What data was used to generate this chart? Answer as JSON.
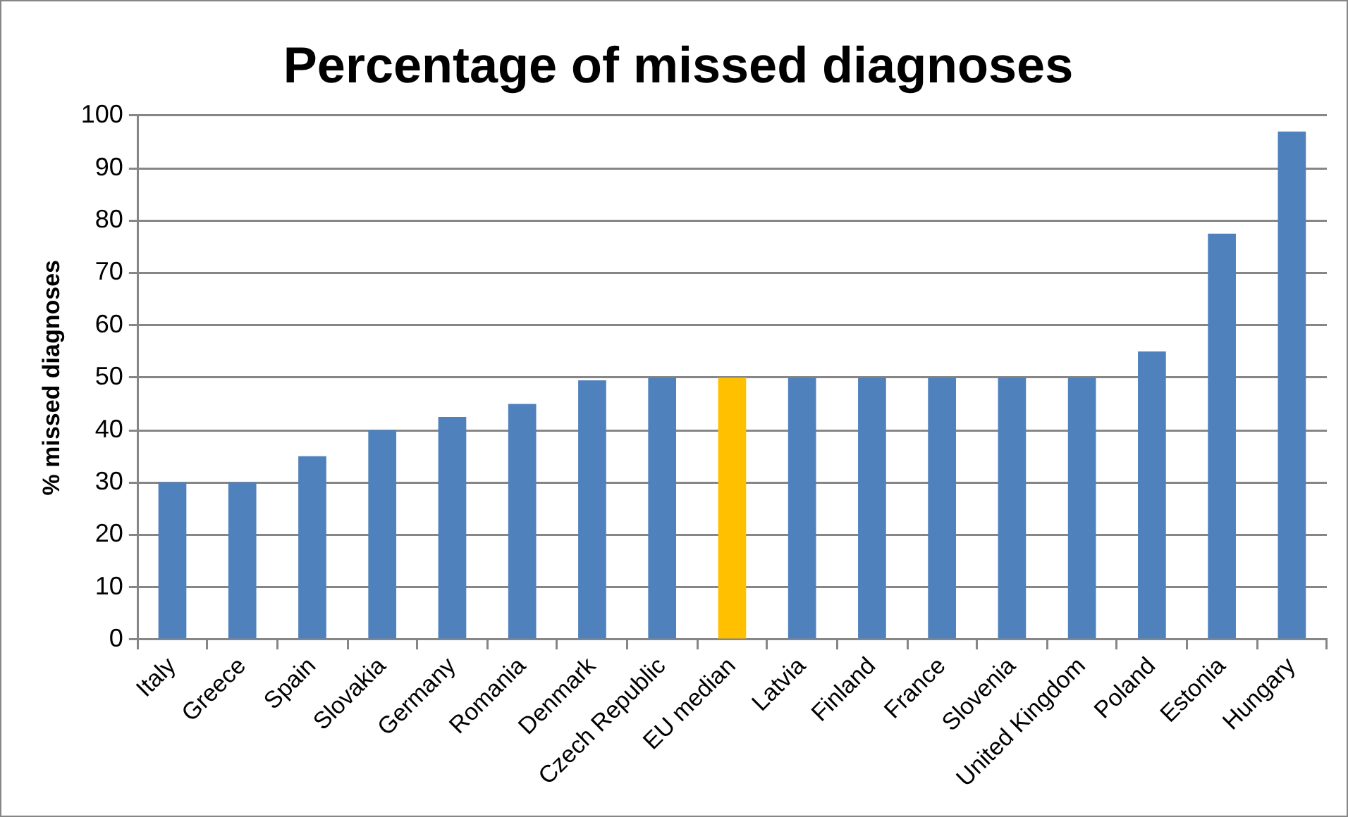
{
  "chart_data": {
    "type": "bar",
    "title": "Percentage of missed diagnoses",
    "ylabel": "% missed diagnoses",
    "categories": [
      "Italy",
      "Greece",
      "Spain",
      "Slovakia",
      "Germany",
      "Romania",
      "Denmark",
      "Czech Republic",
      "EU median",
      "Latvia",
      "Finland",
      "France",
      "Slovenia",
      "United Kingdom",
      "Poland",
      "Estonia",
      "Hungary"
    ],
    "values": [
      30,
      30,
      35,
      40,
      42.5,
      45,
      49.5,
      50,
      50,
      50,
      50,
      50,
      50,
      50,
      55,
      77.5,
      97
    ],
    "colors": [
      "#4f81bd",
      "#4f81bd",
      "#4f81bd",
      "#4f81bd",
      "#4f81bd",
      "#4f81bd",
      "#4f81bd",
      "#4f81bd",
      "#ffc000",
      "#4f81bd",
      "#4f81bd",
      "#4f81bd",
      "#4f81bd",
      "#4f81bd",
      "#4f81bd",
      "#4f81bd",
      "#4f81bd"
    ],
    "ylim": [
      0,
      100
    ],
    "yticks": [
      0,
      10,
      20,
      30,
      40,
      50,
      60,
      70,
      80,
      90,
      100
    ],
    "grid": "y",
    "legend": false
  }
}
